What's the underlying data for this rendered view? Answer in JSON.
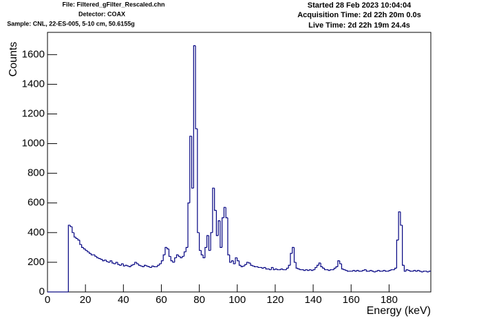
{
  "chart_data": {
    "type": "histogram",
    "header_left": [
      "File: Filtered_gFilter_Rescaled.chn",
      "Detector: COAX",
      "Sample: CNL, 22-ES-005, 5-10 cm, 50.6155g"
    ],
    "header_right": [
      "Started 28 Feb 2023 10:04:04",
      "Acquisition Time: 2d 22h 20m 0.0s",
      "Live Time: 2d 22h 19m 24.4s"
    ],
    "x_label": "Energy (keV)",
    "y_label": "Counts",
    "color": "#000080",
    "xlim": [
      0,
      202
    ],
    "ylim": [
      0,
      1750
    ],
    "xticks": [
      0,
      20,
      40,
      60,
      80,
      100,
      120,
      140,
      160,
      180
    ],
    "yticks": [
      0,
      200,
      400,
      600,
      800,
      1000,
      1200,
      1400,
      1600
    ],
    "bins": [
      0,
      1,
      2,
      3,
      4,
      5,
      6,
      7,
      8,
      9,
      10,
      11,
      12,
      13,
      14,
      15,
      16,
      17,
      18,
      19,
      20,
      21,
      22,
      23,
      24,
      25,
      26,
      27,
      28,
      29,
      30,
      31,
      32,
      33,
      34,
      35,
      36,
      37,
      38,
      39,
      40,
      41,
      42,
      43,
      44,
      45,
      46,
      47,
      48,
      49,
      50,
      51,
      52,
      53,
      54,
      55,
      56,
      57,
      58,
      59,
      60,
      61,
      62,
      63,
      64,
      65,
      66,
      67,
      68,
      69,
      70,
      71,
      72,
      73,
      74,
      75,
      76,
      77,
      78,
      79,
      80,
      81,
      82,
      83,
      84,
      85,
      86,
      87,
      88,
      89,
      90,
      91,
      92,
      93,
      94,
      95,
      96,
      97,
      98,
      99,
      100,
      101,
      102,
      103,
      104,
      105,
      106,
      107,
      108,
      109,
      110,
      111,
      112,
      113,
      114,
      115,
      116,
      117,
      118,
      119,
      120,
      121,
      122,
      123,
      124,
      125,
      126,
      127,
      128,
      129,
      130,
      131,
      132,
      133,
      134,
      135,
      136,
      137,
      138,
      139,
      140,
      141,
      142,
      143,
      144,
      145,
      146,
      147,
      148,
      149,
      150,
      151,
      152,
      153,
      154,
      155,
      156,
      157,
      158,
      159,
      160,
      161,
      162,
      163,
      164,
      165,
      166,
      167,
      168,
      169,
      170,
      171,
      172,
      173,
      174,
      175,
      176,
      177,
      178,
      179,
      180,
      181,
      182,
      183,
      184,
      185,
      186,
      187,
      188,
      189,
      190,
      191,
      192,
      193,
      194,
      195,
      196,
      197,
      198,
      199,
      200,
      201,
      202
    ],
    "values": [
      0,
      0,
      0,
      0,
      0,
      0,
      0,
      0,
      0,
      0,
      0,
      450,
      440,
      400,
      370,
      360,
      350,
      320,
      300,
      290,
      280,
      270,
      260,
      250,
      250,
      240,
      230,
      225,
      220,
      210,
      215,
      205,
      200,
      210,
      195,
      190,
      200,
      185,
      180,
      190,
      175,
      180,
      175,
      170,
      180,
      185,
      200,
      190,
      180,
      175,
      170,
      180,
      175,
      170,
      165,
      175,
      170,
      170,
      180,
      190,
      210,
      250,
      300,
      290,
      240,
      210,
      200,
      230,
      250,
      240,
      230,
      240,
      270,
      300,
      600,
      1050,
      700,
      1660,
      1100,
      400,
      280,
      250,
      230,
      300,
      380,
      280,
      400,
      700,
      550,
      380,
      480,
      300,
      500,
      570,
      500,
      250,
      200,
      210,
      190,
      230,
      210,
      180,
      170,
      175,
      185,
      200,
      195,
      180,
      175,
      170,
      170,
      165,
      165,
      160,
      165,
      155,
      155,
      150,
      165,
      150,
      155,
      150,
      150,
      155,
      150,
      150,
      160,
      180,
      260,
      300,
      200,
      160,
      155,
      150,
      150,
      145,
      150,
      145,
      150,
      145,
      150,
      165,
      180,
      195,
      170,
      160,
      150,
      150,
      145,
      150,
      150,
      160,
      170,
      210,
      190,
      155,
      150,
      145,
      140,
      140,
      140,
      145,
      140,
      145,
      140,
      140,
      145,
      150,
      140,
      140,
      145,
      140,
      135,
      140,
      145,
      140,
      140,
      145,
      140,
      140,
      145,
      150,
      150,
      160,
      350,
      540,
      450,
      180,
      140,
      150,
      145,
      140,
      140,
      145,
      140,
      145,
      140,
      135,
      140,
      140,
      135,
      140
    ]
  }
}
